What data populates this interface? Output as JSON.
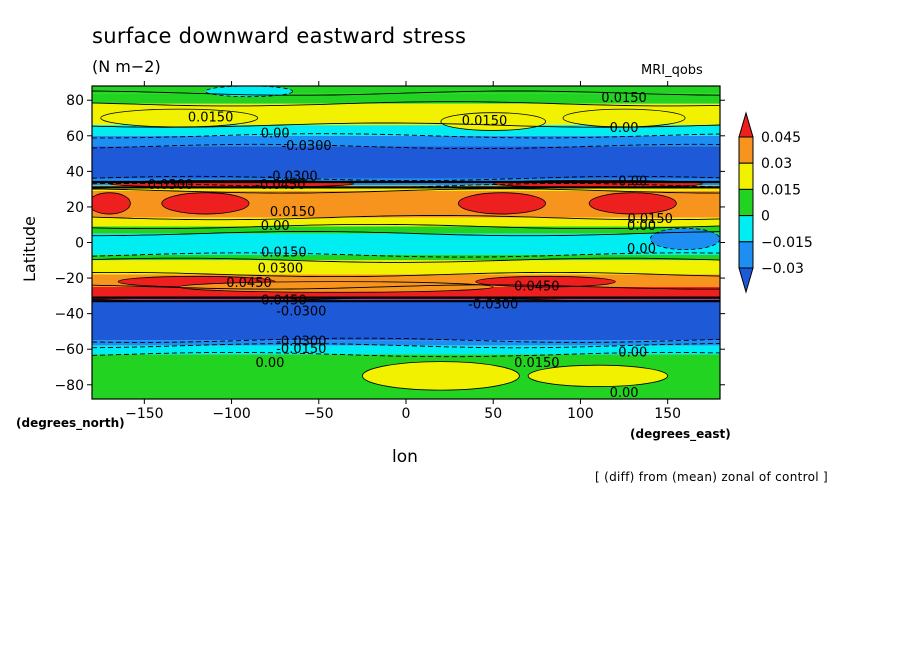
{
  "chart_data": {
    "type": "heatmap",
    "title": "surface downward eastward stress",
    "units": "(N m−2)",
    "model": "MRI_qobs",
    "xlabel": "lon",
    "ylabel": "Latitude",
    "x_units": "(degrees_east)",
    "y_units": "(degrees_north)",
    "note": "[ (diff) from (mean) zonal of control ]",
    "xlim": [
      -180,
      180
    ],
    "ylim": [
      -88,
      88
    ],
    "x_ticks": [
      -150,
      -100,
      -50,
      0,
      50,
      100,
      150
    ],
    "y_ticks": [
      80,
      60,
      40,
      20,
      0,
      -20,
      -40,
      -60,
      -80
    ],
    "x_tick_labels": [
      "−150",
      "−100",
      "−50",
      "0",
      "50",
      "100",
      "150"
    ],
    "y_tick_labels": [
      "80",
      "60",
      "40",
      "20",
      "0",
      "−20",
      "−40",
      "−60",
      "−80"
    ],
    "colorbar": {
      "levels": [
        0.045,
        0.03,
        0.015,
        0,
        -0.015,
        -0.03
      ],
      "labels": [
        "0.045",
        "0.03",
        "0.015",
        "0",
        "−0.015",
        "−0.03"
      ],
      "colors": [
        "#ee1f1f",
        "#f7941d",
        "#f2f200",
        "#22d322",
        "#00eef2",
        "#1e8ff2",
        "#1e5ad8"
      ]
    },
    "zonal_bands": [
      {
        "lat_min": 84,
        "lat_max": 88,
        "value": 0.005
      },
      {
        "lat_min": 78,
        "lat_max": 84,
        "value": 0.005
      },
      {
        "lat_min": 66,
        "lat_max": 78,
        "value": 0.018
      },
      {
        "lat_min": 60,
        "lat_max": 66,
        "value": -0.01
      },
      {
        "lat_min": 54,
        "lat_max": 60,
        "value": -0.02
      },
      {
        "lat_min": 36,
        "lat_max": 54,
        "value": -0.05
      },
      {
        "lat_min": 32,
        "lat_max": 36,
        "value": -0.02
      },
      {
        "lat_min": 29,
        "lat_max": 32,
        "value": 0.02
      },
      {
        "lat_min": 14,
        "lat_max": 29,
        "value": 0.035
      },
      {
        "lat_min": 9,
        "lat_max": 14,
        "value": 0.016
      },
      {
        "lat_min": 5,
        "lat_max": 9,
        "value": 0.005
      },
      {
        "lat_min": -7,
        "lat_max": 5,
        "value": -0.01
      },
      {
        "lat_min": -10,
        "lat_max": -7,
        "value": 0.005
      },
      {
        "lat_min": -18,
        "lat_max": -10,
        "value": 0.016
      },
      {
        "lat_min": -25,
        "lat_max": -18,
        "value": 0.035
      },
      {
        "lat_min": -32,
        "lat_max": -25,
        "value": 0.05
      },
      {
        "lat_min": -55,
        "lat_max": -32,
        "value": -0.05
      },
      {
        "lat_min": -58,
        "lat_max": -55,
        "value": -0.02
      },
      {
        "lat_min": -63,
        "lat_max": -58,
        "value": -0.008
      },
      {
        "lat_min": -88,
        "lat_max": -63,
        "value": 0.005
      }
    ],
    "blobs": [
      {
        "lon": -115,
        "lat": 22,
        "dlon": 25,
        "dlat": 6,
        "value": 0.05
      },
      {
        "lon": -170,
        "lat": 22,
        "dlon": 12,
        "dlat": 6,
        "value": 0.05
      },
      {
        "lon": 55,
        "lat": 22,
        "dlon": 25,
        "dlat": 6,
        "value": 0.05
      },
      {
        "lon": 130,
        "lat": 22,
        "dlon": 25,
        "dlat": 6,
        "value": 0.05
      },
      {
        "lon": -100,
        "lat": 33,
        "dlon": 70,
        "dlat": 2,
        "value": 0.05
      },
      {
        "lon": 110,
        "lat": 33,
        "dlon": 60,
        "dlat": 2,
        "value": 0.05
      },
      {
        "lon": -120,
        "lat": -22,
        "dlon": 45,
        "dlat": 3,
        "value": 0.05
      },
      {
        "lon": 80,
        "lat": -22,
        "dlon": 40,
        "dlat": 3,
        "value": 0.05
      },
      {
        "lon": -40,
        "lat": -25,
        "dlon": 90,
        "dlat": 3,
        "value": 0.035
      },
      {
        "lon": -90,
        "lat": 85,
        "dlon": 25,
        "dlat": 3,
        "value": -0.01
      },
      {
        "lon": 160,
        "lat": 2,
        "dlon": 20,
        "dlat": 6,
        "value": -0.02
      },
      {
        "lon": -130,
        "lat": 70,
        "dlon": 45,
        "dlat": 5,
        "value": 0.018
      },
      {
        "lon": 50,
        "lat": 68,
        "dlon": 30,
        "dlat": 5,
        "value": 0.018
      },
      {
        "lon": 125,
        "lat": 70,
        "dlon": 35,
        "dlat": 5,
        "value": 0.018
      },
      {
        "lon": 20,
        "lat": -75,
        "dlon": 45,
        "dlat": 8,
        "value": 0.018
      },
      {
        "lon": 110,
        "lat": -75,
        "dlon": 40,
        "dlat": 6,
        "value": 0.015
      }
    ],
    "contour_labels": [
      {
        "lon": -112,
        "lat": 68,
        "text": "0.0150"
      },
      {
        "lon": -75,
        "lat": 59,
        "text": "0.00"
      },
      {
        "lon": -57,
        "lat": 52,
        "text": "-0.0300"
      },
      {
        "lon": -65,
        "lat": 35,
        "text": "-0.0300"
      },
      {
        "lon": -72,
        "lat": 30,
        "text": "-0.0450"
      },
      {
        "lon": -135,
        "lat": 30,
        "text": "0.0300"
      },
      {
        "lon": 45,
        "lat": 66,
        "text": "0.0150"
      },
      {
        "lon": 125,
        "lat": 79,
        "text": "0.0150"
      },
      {
        "lon": 125,
        "lat": 62,
        "text": "0.00"
      },
      {
        "lon": 130,
        "lat": 32,
        "text": "0.00"
      },
      {
        "lon": -65,
        "lat": 15,
        "text": "0.0150"
      },
      {
        "lon": -75,
        "lat": 7,
        "text": "0.00"
      },
      {
        "lon": 140,
        "lat": 11,
        "text": "0.0150"
      },
      {
        "lon": 135,
        "lat": 7,
        "text": "0.00"
      },
      {
        "lon": 135,
        "lat": -6,
        "text": "0.00"
      },
      {
        "lon": -70,
        "lat": -8,
        "text": "0.0150"
      },
      {
        "lon": -72,
        "lat": -17,
        "text": "0.0300"
      },
      {
        "lon": -90,
        "lat": -25,
        "text": "0.0450"
      },
      {
        "lon": -70,
        "lat": -35,
        "text": "0.0450"
      },
      {
        "lon": -60,
        "lat": -41,
        "text": "-0.0300"
      },
      {
        "lon": 75,
        "lat": -27,
        "text": "0.0450"
      },
      {
        "lon": 50,
        "lat": -37,
        "text": "-0.0300"
      },
      {
        "lon": -60,
        "lat": -58,
        "text": "-0.0300"
      },
      {
        "lon": -60,
        "lat": -62,
        "text": "-0.0150"
      },
      {
        "lon": -78,
        "lat": -70,
        "text": "0.00"
      },
      {
        "lon": 75,
        "lat": -70,
        "text": "0.0150"
      },
      {
        "lon": 130,
        "lat": -64,
        "text": "0.00"
      },
      {
        "lon": 125,
        "lat": -87,
        "text": "0.00"
      }
    ]
  }
}
